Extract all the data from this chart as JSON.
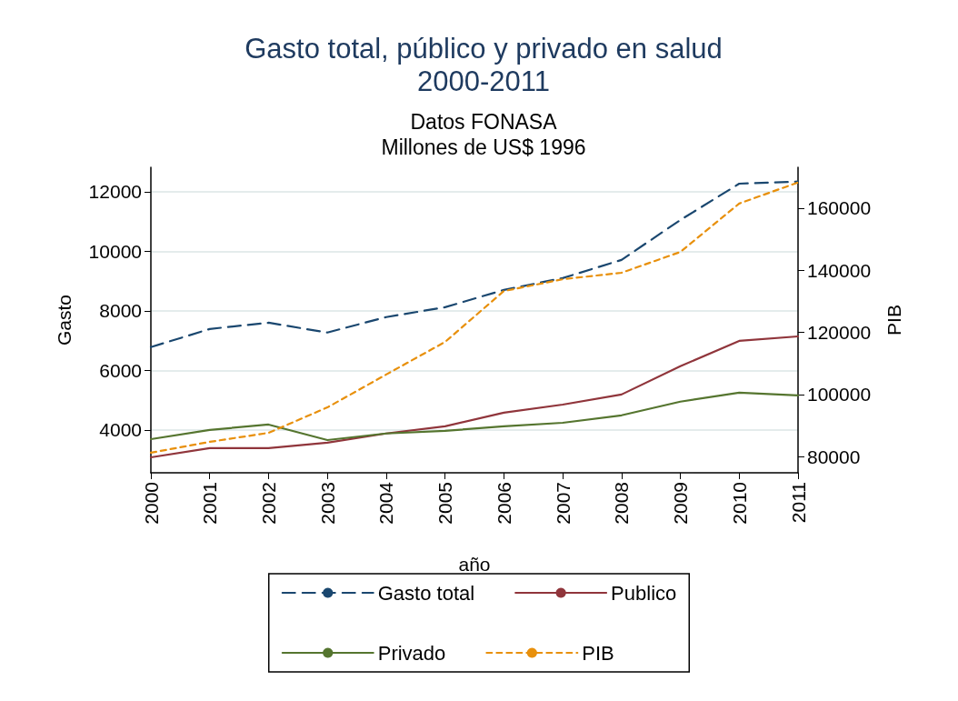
{
  "chart_data": {
    "type": "line",
    "title": "Gasto total, público y privado en salud\n2000-2011",
    "subtitle": "Datos FONASA\nMillones de US$ 1996",
    "xlabel": "año",
    "ylabel": "Gasto",
    "y2label": "PIB",
    "categories": [
      "2000",
      "2001",
      "2002",
      "2003",
      "2004",
      "2005",
      "2006",
      "2007",
      "2008",
      "2009",
      "2010",
      "2011"
    ],
    "series": [
      {
        "name": "Gasto total",
        "color": "#1a476f",
        "line_style": "dashed",
        "values": [
          6780,
          7390,
          7600,
          7270,
          7790,
          8120,
          8700,
          9100,
          9710,
          11050,
          12270,
          12340
        ]
      },
      {
        "name": "Publico",
        "color": "#90353b",
        "line_style": "solid",
        "values": [
          3080,
          3390,
          3390,
          3570,
          3880,
          4120,
          4580,
          4850,
          5190,
          6140,
          6990,
          7140
        ]
      },
      {
        "name": "Privado",
        "color": "#55752f",
        "line_style": "solid",
        "values": [
          3690,
          4000,
          4180,
          3660,
          3880,
          3970,
          4120,
          4240,
          4490,
          4950,
          5250,
          5160
        ]
      },
      {
        "name": "PIB",
        "color": "#e8900c",
        "line_style": "dashed",
        "axis": "y2",
        "values": [
          81200,
          84700,
          87600,
          95800,
          106400,
          116900,
          133300,
          137100,
          139200,
          145900,
          161500,
          168300
        ]
      }
    ],
    "ylim": [
      2560,
      12820
    ],
    "yticks": [
      4000,
      6000,
      8000,
      10000,
      12000
    ],
    "y2lim": [
      74730,
      173180
    ],
    "y2ticks": [
      80000,
      100000,
      120000,
      140000,
      160000
    ],
    "grid": "y",
    "legend": "bottom",
    "marker": "none"
  }
}
